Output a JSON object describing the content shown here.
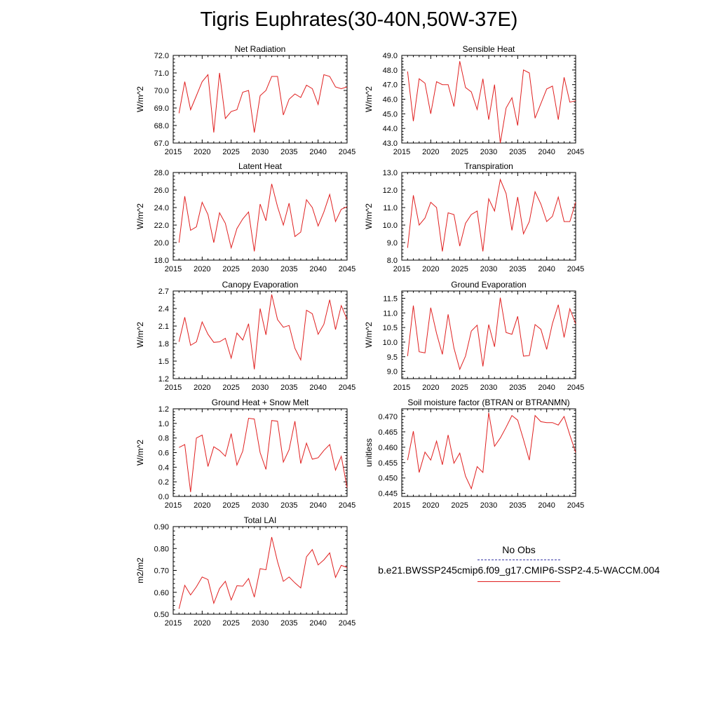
{
  "title": "Tigris Euphrates(30-40N,50W-37E)",
  "legend": {
    "obs_label": "No Obs",
    "model_label": "b.e21.BWSSP245cmip6.f09_g17.CMIP6-SSP2-4.5-WACCM.004",
    "obs_color": "#3a3aa8",
    "model_color": "#e02020"
  },
  "chart_data": [
    {
      "type": "line",
      "title": "Net Radiation",
      "ylabel": "W/m^2",
      "xlim": [
        2015,
        2045
      ],
      "ylim": [
        67.0,
        72.0
      ],
      "yticks": [
        "67.0",
        "68.0",
        "69.0",
        "70.0",
        "71.0",
        "72.0"
      ],
      "xticks": [
        "2015",
        "2020",
        "2025",
        "2030",
        "2035",
        "2040",
        "2045"
      ],
      "x": [
        2016,
        2017,
        2018,
        2019,
        2020,
        2021,
        2022,
        2023,
        2024,
        2025,
        2026,
        2027,
        2028,
        2029,
        2030,
        2031,
        2032,
        2033,
        2034,
        2035,
        2036,
        2037,
        2038,
        2039,
        2040,
        2041,
        2042,
        2043,
        2044,
        2045
      ],
      "series": [
        {
          "values": [
            68.7,
            70.5,
            68.9,
            69.7,
            70.5,
            70.9,
            67.6,
            71.0,
            68.4,
            68.8,
            68.9,
            69.9,
            70.0,
            67.6,
            69.7,
            70.0,
            70.8,
            70.8,
            68.6,
            69.5,
            69.8,
            69.6,
            70.3,
            70.1,
            69.2,
            70.9,
            70.8,
            70.2,
            70.1,
            70.2
          ]
        }
      ]
    },
    {
      "type": "line",
      "title": "Sensible Heat",
      "ylabel": "W/m^2",
      "xlim": [
        2015,
        2045
      ],
      "ylim": [
        43.0,
        49.0
      ],
      "yticks": [
        "43.0",
        "44.0",
        "45.0",
        "46.0",
        "47.0",
        "48.0",
        "49.0"
      ],
      "xticks": [
        "2015",
        "2020",
        "2025",
        "2030",
        "2035",
        "2040",
        "2045"
      ],
      "x": [
        2016,
        2017,
        2018,
        2019,
        2020,
        2021,
        2022,
        2023,
        2024,
        2025,
        2026,
        2027,
        2028,
        2029,
        2030,
        2031,
        2032,
        2033,
        2034,
        2035,
        2036,
        2037,
        2038,
        2039,
        2040,
        2041,
        2042,
        2043,
        2044,
        2045
      ],
      "series": [
        {
          "values": [
            47.9,
            44.5,
            47.4,
            47.1,
            45.0,
            47.2,
            47.0,
            47.0,
            45.5,
            48.6,
            46.8,
            46.5,
            45.3,
            47.4,
            44.6,
            47.0,
            43.0,
            45.4,
            46.1,
            44.2,
            48.0,
            47.8,
            44.7,
            45.7,
            46.7,
            46.9,
            44.6,
            47.5,
            45.8,
            45.9
          ]
        }
      ]
    },
    {
      "type": "line",
      "title": "Latent Heat",
      "ylabel": "W/m^2",
      "xlim": [
        2015,
        2045
      ],
      "ylim": [
        18.0,
        28.0
      ],
      "yticks": [
        "18.0",
        "20.0",
        "22.0",
        "24.0",
        "26.0",
        "28.0"
      ],
      "xticks": [
        "2015",
        "2020",
        "2025",
        "2030",
        "2035",
        "2040",
        "2045"
      ],
      "x": [
        2016,
        2017,
        2018,
        2019,
        2020,
        2021,
        2022,
        2023,
        2024,
        2025,
        2026,
        2027,
        2028,
        2029,
        2030,
        2031,
        2032,
        2033,
        2034,
        2035,
        2036,
        2037,
        2038,
        2039,
        2040,
        2041,
        2042,
        2043,
        2044,
        2045
      ],
      "series": [
        {
          "values": [
            20.0,
            25.3,
            21.4,
            21.8,
            24.6,
            23.2,
            20.0,
            23.4,
            22.2,
            19.4,
            21.6,
            22.7,
            23.5,
            19.0,
            24.4,
            22.5,
            26.7,
            24.1,
            22.0,
            24.5,
            20.7,
            21.2,
            24.9,
            24.0,
            21.9,
            23.5,
            25.5,
            22.4,
            23.8,
            24.1
          ]
        }
      ]
    },
    {
      "type": "line",
      "title": "Transpiration",
      "ylabel": "W/m^2",
      "xlim": [
        2015,
        2045
      ],
      "ylim": [
        8.0,
        13.0
      ],
      "yticks": [
        "8.0",
        "9.0",
        "10.0",
        "11.0",
        "12.0",
        "13.0"
      ],
      "xticks": [
        "2015",
        "2020",
        "2025",
        "2030",
        "2035",
        "2040",
        "2045"
      ],
      "x": [
        2016,
        2017,
        2018,
        2019,
        2020,
        2021,
        2022,
        2023,
        2024,
        2025,
        2026,
        2027,
        2028,
        2029,
        2030,
        2031,
        2032,
        2033,
        2034,
        2035,
        2036,
        2037,
        2038,
        2039,
        2040,
        2041,
        2042,
        2043,
        2044,
        2045
      ],
      "series": [
        {
          "values": [
            8.7,
            11.7,
            10.0,
            10.4,
            11.3,
            11.0,
            8.5,
            10.7,
            10.6,
            8.8,
            10.1,
            10.6,
            10.8,
            8.5,
            11.5,
            10.8,
            12.6,
            11.8,
            9.7,
            11.6,
            9.5,
            10.2,
            11.9,
            11.2,
            10.2,
            10.5,
            11.6,
            10.2,
            10.2,
            11.3
          ]
        }
      ]
    },
    {
      "type": "line",
      "title": "Canopy Evaporation",
      "ylabel": "W/m^2",
      "xlim": [
        2015,
        2045
      ],
      "ylim": [
        1.2,
        2.7
      ],
      "yticks": [
        "1.2",
        "1.5",
        "1.8",
        "2.1",
        "2.4",
        "2.7"
      ],
      "xticks": [
        "2015",
        "2020",
        "2025",
        "2030",
        "2035",
        "2040",
        "2045"
      ],
      "x": [
        2016,
        2017,
        2018,
        2019,
        2020,
        2021,
        2022,
        2023,
        2024,
        2025,
        2026,
        2027,
        2028,
        2029,
        2030,
        2031,
        2032,
        2033,
        2034,
        2035,
        2036,
        2037,
        2038,
        2039,
        2040,
        2041,
        2042,
        2043,
        2044,
        2045
      ],
      "series": [
        {
          "values": [
            1.83,
            2.25,
            1.77,
            1.83,
            2.17,
            1.96,
            1.82,
            1.83,
            1.89,
            1.55,
            1.98,
            1.86,
            2.14,
            1.36,
            2.4,
            1.95,
            2.64,
            2.21,
            2.08,
            2.11,
            1.72,
            1.52,
            2.37,
            2.31,
            1.96,
            2.13,
            2.55,
            2.04,
            2.45,
            2.21
          ]
        }
      ]
    },
    {
      "type": "line",
      "title": "Ground Evaporation",
      "ylabel": "W/m^2",
      "xlim": [
        2015,
        2045
      ],
      "ylim": [
        8.75,
        11.75
      ],
      "yticks": [
        "9.0",
        "9.5",
        "10.0",
        "10.5",
        "11.0",
        "11.5"
      ],
      "xticks": [
        "2015",
        "2020",
        "2025",
        "2030",
        "2035",
        "2040",
        "2045"
      ],
      "x": [
        2016,
        2017,
        2018,
        2019,
        2020,
        2021,
        2022,
        2023,
        2024,
        2025,
        2026,
        2027,
        2028,
        2029,
        2030,
        2031,
        2032,
        2033,
        2034,
        2035,
        2036,
        2037,
        2038,
        2039,
        2040,
        2041,
        2042,
        2043,
        2044,
        2045
      ],
      "series": [
        {
          "values": [
            9.52,
            11.25,
            9.67,
            9.63,
            11.18,
            10.3,
            9.58,
            10.95,
            9.8,
            9.07,
            9.52,
            10.38,
            10.58,
            9.17,
            10.6,
            9.84,
            11.52,
            10.33,
            10.27,
            10.88,
            9.52,
            9.54,
            10.6,
            10.44,
            9.75,
            10.64,
            11.28,
            10.16,
            11.14,
            10.63
          ]
        }
      ]
    },
    {
      "type": "line",
      "title": "Ground Heat + Snow Melt",
      "ylabel": "W/m^2",
      "xlim": [
        2015,
        2045
      ],
      "ylim": [
        0.0,
        1.2
      ],
      "yticks": [
        "0.0",
        "0.2",
        "0.4",
        "0.6",
        "0.8",
        "1.0",
        "1.2"
      ],
      "xticks": [
        "2015",
        "2020",
        "2025",
        "2030",
        "2035",
        "2040",
        "2045"
      ],
      "x": [
        2016,
        2017,
        2018,
        2019,
        2020,
        2021,
        2022,
        2023,
        2024,
        2025,
        2026,
        2027,
        2028,
        2029,
        2030,
        2031,
        2032,
        2033,
        2034,
        2035,
        2036,
        2037,
        2038,
        2039,
        2040,
        2041,
        2042,
        2043,
        2044,
        2045
      ],
      "series": [
        {
          "values": [
            0.67,
            0.71,
            0.06,
            0.8,
            0.84,
            0.41,
            0.68,
            0.63,
            0.55,
            0.86,
            0.43,
            0.62,
            1.07,
            1.06,
            0.6,
            0.37,
            1.04,
            1.03,
            0.47,
            0.64,
            1.03,
            0.45,
            0.73,
            0.51,
            0.53,
            0.63,
            0.71,
            0.36,
            0.55,
            0.12
          ]
        }
      ]
    },
    {
      "type": "line",
      "title": "Soil moisture factor (BTRAN or BTRANMN)",
      "ylabel": "unitless",
      "xlim": [
        2015,
        2045
      ],
      "ylim": [
        0.444,
        0.4725
      ],
      "yticks": [
        "0.445",
        "0.450",
        "0.455",
        "0.460",
        "0.465",
        "0.470"
      ],
      "xticks": [
        "2015",
        "2020",
        "2025",
        "2030",
        "2035",
        "2040",
        "2045"
      ],
      "x": [
        2016,
        2017,
        2018,
        2019,
        2020,
        2021,
        2022,
        2023,
        2024,
        2025,
        2026,
        2027,
        2028,
        2029,
        2030,
        2031,
        2032,
        2033,
        2034,
        2035,
        2036,
        2037,
        2038,
        2039,
        2040,
        2041,
        2042,
        2043,
        2044,
        2045
      ],
      "series": [
        {
          "values": [
            0.4558,
            0.4652,
            0.4518,
            0.4584,
            0.4558,
            0.462,
            0.4543,
            0.464,
            0.4548,
            0.4581,
            0.4506,
            0.4465,
            0.4537,
            0.4518,
            0.4712,
            0.4603,
            0.463,
            0.4665,
            0.4703,
            0.4688,
            0.4625,
            0.4558,
            0.4703,
            0.4683,
            0.468,
            0.468,
            0.4672,
            0.47,
            0.464,
            0.4583
          ]
        }
      ]
    },
    {
      "type": "line",
      "title": "Total LAI",
      "ylabel": "m2/m2",
      "xlim": [
        2015,
        2045
      ],
      "ylim": [
        0.5,
        0.9
      ],
      "yticks": [
        "0.50",
        "0.60",
        "0.70",
        "0.80",
        "0.90"
      ],
      "xticks": [
        "2015",
        "2020",
        "2025",
        "2030",
        "2035",
        "2040",
        "2045"
      ],
      "x": [
        2016,
        2017,
        2018,
        2019,
        2020,
        2021,
        2022,
        2023,
        2024,
        2025,
        2026,
        2027,
        2028,
        2029,
        2030,
        2031,
        2032,
        2033,
        2034,
        2035,
        2036,
        2037,
        2038,
        2039,
        2040,
        2041,
        2042,
        2043,
        2044,
        2045
      ],
      "series": [
        {
          "values": [
            0.525,
            0.632,
            0.588,
            0.625,
            0.67,
            0.658,
            0.55,
            0.617,
            0.65,
            0.565,
            0.63,
            0.628,
            0.663,
            0.578,
            0.708,
            0.703,
            0.852,
            0.74,
            0.65,
            0.67,
            0.643,
            0.62,
            0.762,
            0.795,
            0.725,
            0.748,
            0.78,
            0.668,
            0.723,
            0.713
          ]
        }
      ]
    }
  ]
}
